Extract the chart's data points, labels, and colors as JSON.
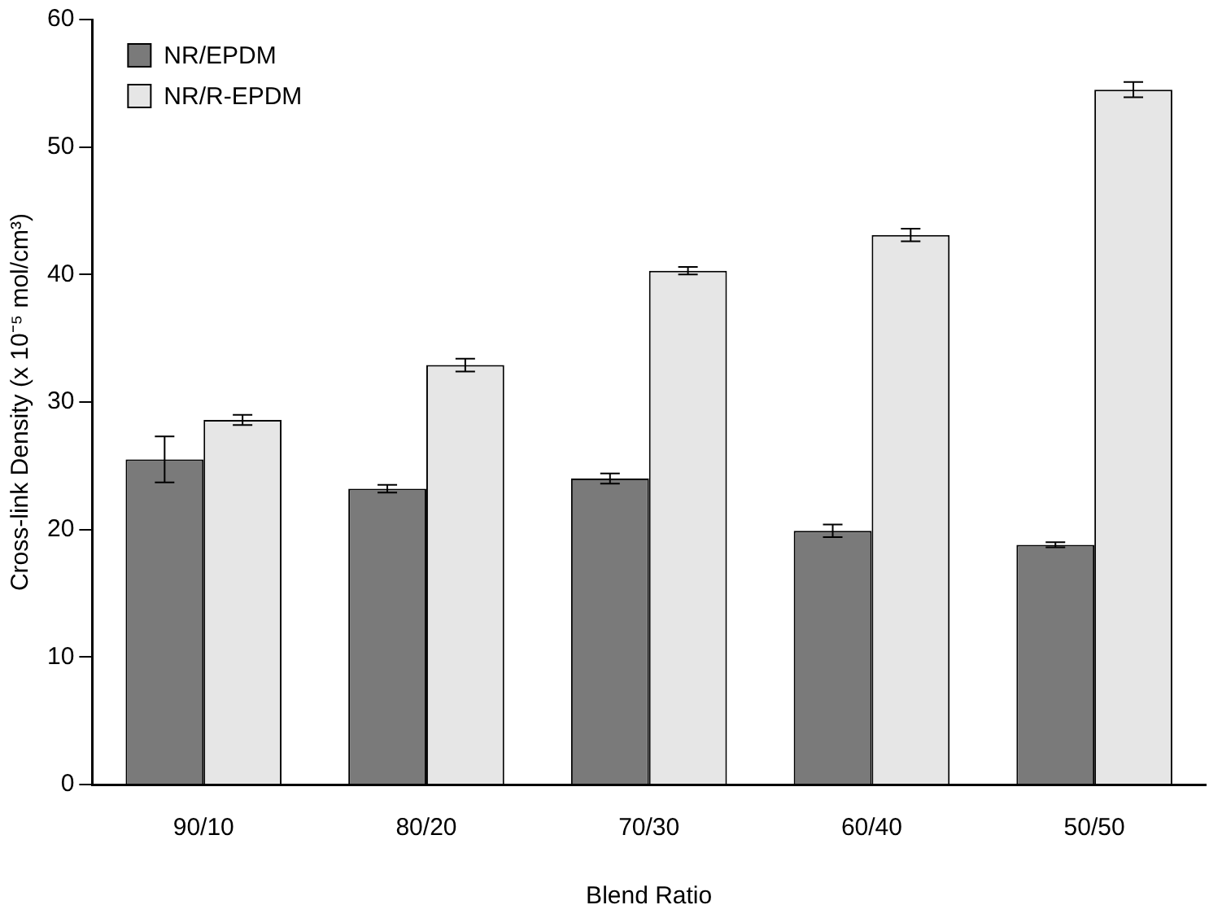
{
  "chart_data": {
    "type": "bar",
    "xlabel": "Blend Ratio",
    "ylabel": "Cross-link Density (x 10⁻⁵ mol/cm³)",
    "categories": [
      "90/10",
      "80/20",
      "70/30",
      "60/40",
      "50/50"
    ],
    "series": [
      {
        "name": "NR/EPDM",
        "color": "#7a7a7a",
        "values": [
          25.5,
          23.2,
          24.0,
          19.9,
          18.8
        ],
        "errors": [
          1.8,
          0.3,
          0.4,
          0.5,
          0.2
        ]
      },
      {
        "name": "NR/R-EPDM",
        "color": "#e6e6e6",
        "values": [
          28.6,
          32.9,
          40.3,
          43.1,
          54.5
        ],
        "errors": [
          0.4,
          0.5,
          0.3,
          0.5,
          0.6
        ]
      }
    ],
    "ylim": [
      0,
      60
    ],
    "yticks": [
      0,
      10,
      20,
      30,
      40,
      50,
      60
    ],
    "grid": false,
    "legend": "top left"
  }
}
